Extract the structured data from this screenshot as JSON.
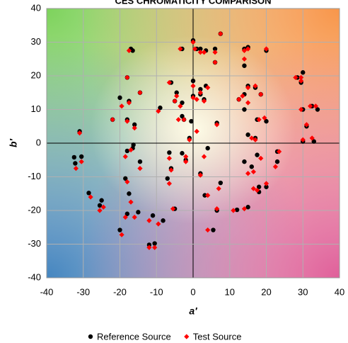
{
  "chart_data": {
    "type": "scatter",
    "title": "CES CHROMATICITY COMPARISON",
    "x_label": "a′",
    "y_label": "b′",
    "xlim": [
      -40,
      40
    ],
    "ylim": [
      -40,
      40
    ],
    "xticks": [
      -40,
      -30,
      -20,
      -10,
      0,
      10,
      20,
      30,
      40
    ],
    "yticks": [
      -40,
      -30,
      -20,
      -10,
      0,
      10,
      20,
      30,
      40
    ],
    "grid": true,
    "legend": "bottom",
    "series": [
      {
        "name": "Reference Source",
        "color": "#000000",
        "marker": "circle",
        "x": [
          -31,
          -32.5,
          -32.2,
          -30.5,
          -28.5,
          -25,
          -25.5,
          -20,
          -18,
          -17.5,
          -18.5,
          -18,
          -16.5,
          -16.3,
          -14.5,
          -15,
          -12,
          -10.5,
          -11,
          -8.2,
          -6.5,
          -7,
          -6,
          -5,
          -3,
          -2,
          2,
          3.2,
          4,
          5.5,
          7.5,
          6.5,
          12,
          15,
          14,
          16,
          17.5,
          18,
          18,
          20,
          23,
          23,
          30,
          33,
          34,
          32.5,
          31,
          30,
          28.5,
          30,
          29.5,
          20,
          17.5,
          17,
          15,
          14,
          14,
          12.5,
          17,
          18.5,
          15,
          14,
          15,
          20,
          14,
          7.5,
          6,
          6,
          6.5,
          3.5,
          2,
          2,
          3,
          1,
          2,
          0,
          3.5,
          -3,
          -4.5,
          -5,
          -3,
          -3,
          -2.5,
          -1,
          -0.5,
          0,
          0,
          -6,
          -9,
          -14.5,
          -17,
          -16.5,
          -18,
          -17.5,
          -20,
          -22,
          -18,
          -16
        ],
        "y": [
          3.5,
          -4.2,
          -6,
          -4,
          -14.8,
          -17,
          -18.5,
          -25.8,
          -21,
          -15,
          -10.5,
          -2.3,
          -1.5,
          -0.5,
          -5.5,
          -20.5,
          -30.2,
          -29.8,
          -21.5,
          -23,
          -2.8,
          -10.5,
          -7.5,
          -19.5,
          -3,
          -5,
          -9,
          -15.5,
          -1.5,
          -25.8,
          -11.8,
          -20,
          -19.8,
          -19,
          -5.5,
          -7,
          -3.5,
          -13,
          -14.5,
          -13,
          -5.5,
          -2.5,
          0.5,
          0.5,
          10,
          11,
          5,
          10,
          19.5,
          21,
          18,
          6.5,
          7,
          1.5,
          2.5,
          10,
          14.5,
          13,
          16.5,
          14.5,
          17,
          28,
          28.5,
          27.5,
          23,
          32.5,
          28,
          24,
          6,
          17,
          16,
          14.5,
          13,
          28,
          28,
          30.5,
          27.5,
          28,
          15,
          12.5,
          12,
          8,
          7,
          1.5,
          6.5,
          18.5,
          14,
          18,
          10.5,
          15,
          28,
          27.5,
          19.5,
          12.5,
          13.5,
          7,
          7,
          5.5
        ]
      },
      {
        "name": "Test Source",
        "color": "#ff0000",
        "marker": "diamond",
        "x": [
          -31,
          -32,
          -30.5,
          -28,
          -24.5,
          -25.5,
          -19.5,
          -18.5,
          -17,
          -18,
          -18.5,
          -17,
          -14.5,
          -16,
          -12,
          -10.5,
          -12,
          -9.5,
          -6.5,
          -6.5,
          -6,
          -5.5,
          -2,
          -2,
          2,
          4,
          3,
          4,
          7,
          6.5,
          11,
          14,
          15,
          16.5,
          18.5,
          17.5,
          16.5,
          20,
          22.5,
          23.5,
          30,
          32.5,
          33.5,
          32,
          31,
          29.5,
          28,
          29.5,
          29.5,
          19.5,
          18,
          17,
          16,
          15,
          13.5,
          12.5,
          17,
          18.5,
          15,
          14,
          15,
          20,
          14,
          7.5,
          6,
          6,
          6.5,
          4,
          2,
          1,
          3,
          0.5,
          2,
          0,
          3,
          -3.5,
          -4.5,
          -5,
          -3.5,
          -4,
          -2.5,
          -1,
          1,
          0,
          0,
          -6.5,
          -9.5,
          -14.5,
          -17.5,
          -18,
          -17.5,
          -19.5,
          -22,
          -18,
          -16
        ],
        "y": [
          3,
          -7.5,
          -5.5,
          -16,
          -19,
          -20,
          -27.2,
          -22,
          -17.5,
          -11.5,
          -4,
          -2,
          -7.5,
          -22,
          -31,
          -31,
          -23,
          -24,
          -4.5,
          -12,
          -8,
          -19.5,
          -4,
          -5.5,
          -9.5,
          -15.5,
          -4,
          -25.8,
          -13.5,
          -19.5,
          -20,
          -19.5,
          -9,
          -8.5,
          -4.5,
          -14,
          -13.5,
          -12,
          -7,
          -2.5,
          1,
          1.5,
          11,
          11,
          5.5,
          10,
          19.5,
          19.5,
          18.5,
          7.5,
          7,
          1,
          1.5,
          12,
          14,
          13,
          17,
          14.5,
          16.5,
          27.5,
          28,
          28,
          25,
          32.5,
          27,
          24,
          5.5,
          16.5,
          15,
          13,
          12.5,
          28,
          27,
          30,
          27,
          28,
          14,
          12.5,
          11,
          7,
          7,
          1,
          3.5,
          17,
          13.5,
          18,
          9.5,
          15,
          27.5,
          19.5,
          12,
          11,
          7,
          6.5,
          4.5
        ]
      }
    ]
  }
}
